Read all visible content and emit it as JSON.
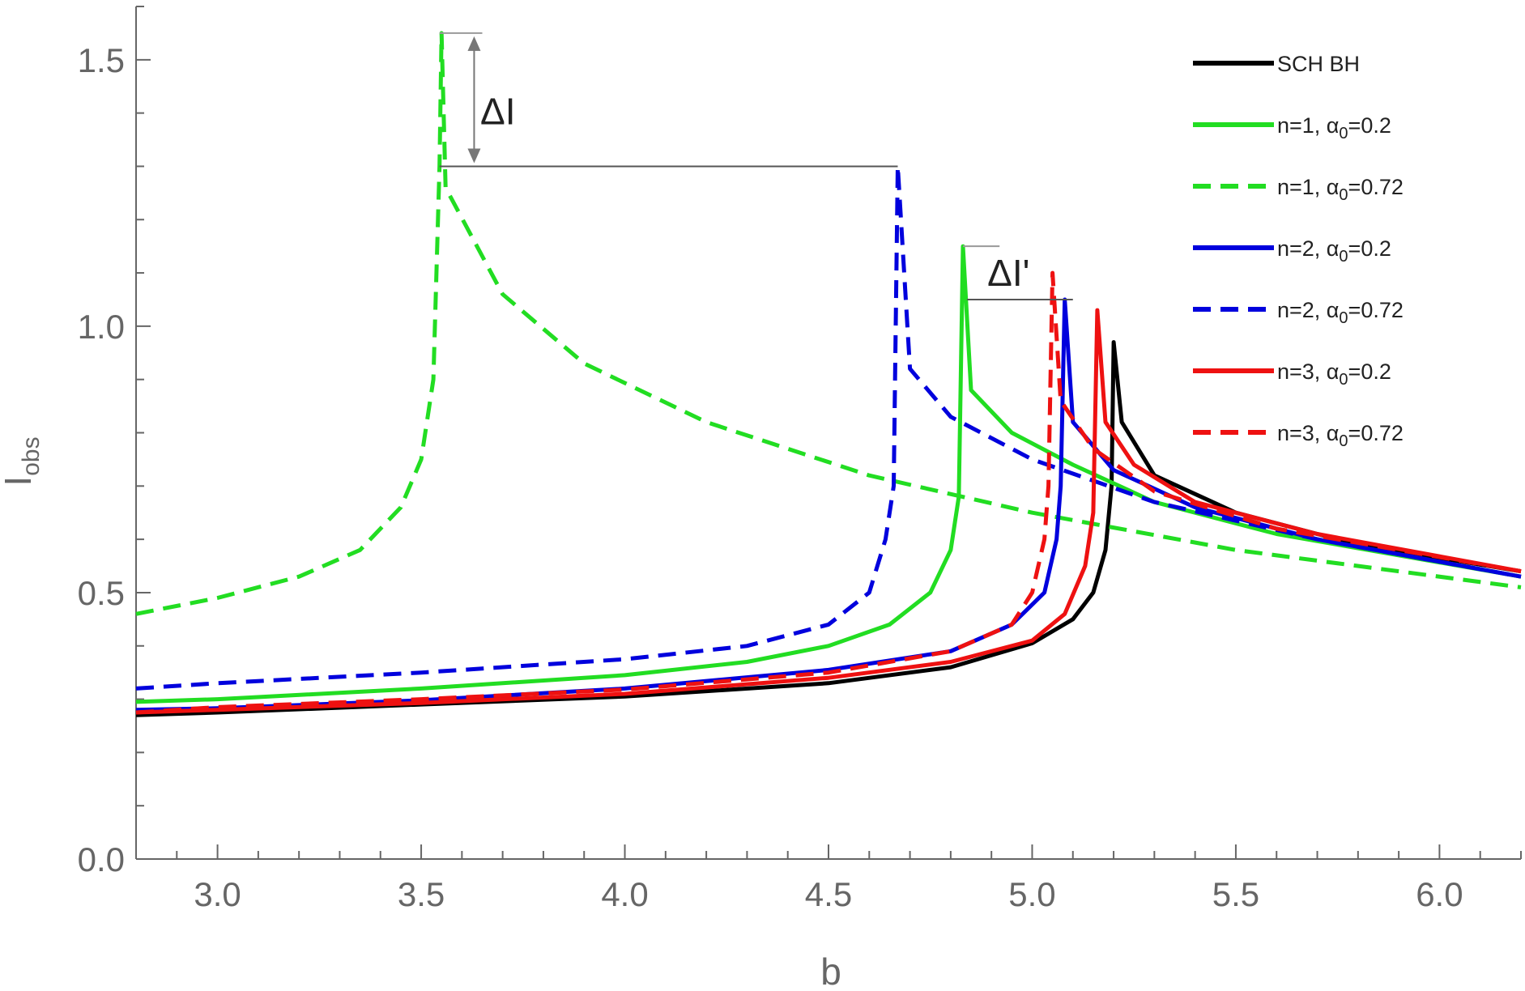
{
  "chart_data": {
    "type": "line",
    "title": "",
    "xlabel": "b",
    "ylabel": "I",
    "ylabel_sub": "obs",
    "xlim": [
      2.8,
      6.2
    ],
    "ylim": [
      0.0,
      1.6
    ],
    "x_ticks": [
      "3.0",
      "3.5",
      "4.0",
      "4.5",
      "5.0",
      "5.5",
      "6.0"
    ],
    "y_ticks": [
      "0.0",
      "0.5",
      "1.0",
      "1.5"
    ],
    "grid": false,
    "legend_position": "top-right",
    "series": [
      {
        "name": "SCH BH",
        "color": "#000000",
        "dash": "solid",
        "points": [
          [
            2.8,
            0.27
          ],
          [
            3.0,
            0.275
          ],
          [
            3.5,
            0.29
          ],
          [
            4.0,
            0.305
          ],
          [
            4.5,
            0.33
          ],
          [
            4.8,
            0.36
          ],
          [
            5.0,
            0.405
          ],
          [
            5.1,
            0.45
          ],
          [
            5.15,
            0.5
          ],
          [
            5.18,
            0.58
          ],
          [
            5.195,
            0.7
          ],
          [
            5.2,
            0.97
          ],
          [
            5.22,
            0.82
          ],
          [
            5.3,
            0.72
          ],
          [
            5.5,
            0.65
          ],
          [
            5.8,
            0.59
          ],
          [
            6.2,
            0.54
          ]
        ]
      },
      {
        "name": "n=1, α0=0.2",
        "color": "#22dd22",
        "dash": "solid",
        "points": [
          [
            2.8,
            0.295
          ],
          [
            3.0,
            0.3
          ],
          [
            3.5,
            0.32
          ],
          [
            4.0,
            0.345
          ],
          [
            4.3,
            0.37
          ],
          [
            4.5,
            0.4
          ],
          [
            4.65,
            0.44
          ],
          [
            4.75,
            0.5
          ],
          [
            4.8,
            0.58
          ],
          [
            4.82,
            0.68
          ],
          [
            4.83,
            1.15
          ],
          [
            4.85,
            0.88
          ],
          [
            4.95,
            0.8
          ],
          [
            5.1,
            0.74
          ],
          [
            5.3,
            0.67
          ],
          [
            5.6,
            0.61
          ],
          [
            6.2,
            0.53
          ]
        ]
      },
      {
        "name": "n=1, α0=0.72",
        "color": "#22dd22",
        "dash": "dashed",
        "points": [
          [
            2.8,
            0.46
          ],
          [
            3.0,
            0.49
          ],
          [
            3.2,
            0.53
          ],
          [
            3.35,
            0.58
          ],
          [
            3.45,
            0.66
          ],
          [
            3.5,
            0.75
          ],
          [
            3.53,
            0.9
          ],
          [
            3.545,
            1.3
          ],
          [
            3.55,
            1.55
          ],
          [
            3.56,
            1.26
          ],
          [
            3.7,
            1.06
          ],
          [
            3.9,
            0.93
          ],
          [
            4.2,
            0.82
          ],
          [
            4.6,
            0.72
          ],
          [
            5.0,
            0.65
          ],
          [
            5.5,
            0.58
          ],
          [
            6.2,
            0.51
          ]
        ]
      },
      {
        "name": "n=2, α0=0.2",
        "color": "#0000dd",
        "dash": "solid",
        "points": [
          [
            2.8,
            0.28
          ],
          [
            3.0,
            0.283
          ],
          [
            3.5,
            0.298
          ],
          [
            4.0,
            0.32
          ],
          [
            4.5,
            0.355
          ],
          [
            4.8,
            0.39
          ],
          [
            4.95,
            0.44
          ],
          [
            5.03,
            0.5
          ],
          [
            5.06,
            0.6
          ],
          [
            5.07,
            0.7
          ],
          [
            5.08,
            1.05
          ],
          [
            5.1,
            0.82
          ],
          [
            5.2,
            0.73
          ],
          [
            5.4,
            0.66
          ],
          [
            5.7,
            0.6
          ],
          [
            6.2,
            0.53
          ]
        ]
      },
      {
        "name": "n=2, α0=0.72",
        "color": "#0000dd",
        "dash": "dashed",
        "points": [
          [
            2.8,
            0.32
          ],
          [
            3.0,
            0.33
          ],
          [
            3.5,
            0.35
          ],
          [
            4.0,
            0.375
          ],
          [
            4.3,
            0.4
          ],
          [
            4.5,
            0.44
          ],
          [
            4.6,
            0.5
          ],
          [
            4.64,
            0.6
          ],
          [
            4.66,
            0.7
          ],
          [
            4.67,
            1.3
          ],
          [
            4.7,
            0.92
          ],
          [
            4.8,
            0.83
          ],
          [
            5.0,
            0.75
          ],
          [
            5.3,
            0.67
          ],
          [
            5.7,
            0.6
          ],
          [
            6.2,
            0.53
          ]
        ]
      },
      {
        "name": "n=3, α0=0.2",
        "color": "#ee1111",
        "dash": "solid",
        "points": [
          [
            2.8,
            0.275
          ],
          [
            3.0,
            0.28
          ],
          [
            3.5,
            0.293
          ],
          [
            4.0,
            0.31
          ],
          [
            4.5,
            0.34
          ],
          [
            4.8,
            0.37
          ],
          [
            5.0,
            0.41
          ],
          [
            5.08,
            0.46
          ],
          [
            5.13,
            0.55
          ],
          [
            5.15,
            0.65
          ],
          [
            5.16,
            1.03
          ],
          [
            5.18,
            0.82
          ],
          [
            5.25,
            0.74
          ],
          [
            5.4,
            0.67
          ],
          [
            5.7,
            0.61
          ],
          [
            6.2,
            0.54
          ]
        ]
      },
      {
        "name": "n=3, α0=0.72",
        "color": "#ee1111",
        "dash": "dashed",
        "points": [
          [
            2.8,
            0.275
          ],
          [
            3.0,
            0.285
          ],
          [
            3.5,
            0.3
          ],
          [
            4.0,
            0.318
          ],
          [
            4.5,
            0.35
          ],
          [
            4.8,
            0.39
          ],
          [
            4.95,
            0.44
          ],
          [
            5.0,
            0.5
          ],
          [
            5.03,
            0.6
          ],
          [
            5.04,
            0.7
          ],
          [
            5.05,
            1.1
          ],
          [
            5.07,
            0.86
          ],
          [
            5.15,
            0.77
          ],
          [
            5.3,
            0.69
          ],
          [
            5.6,
            0.62
          ],
          [
            6.2,
            0.54
          ]
        ]
      }
    ],
    "annotations": [
      {
        "text": "ΔI"
      },
      {
        "text": "ΔI'"
      }
    ]
  }
}
